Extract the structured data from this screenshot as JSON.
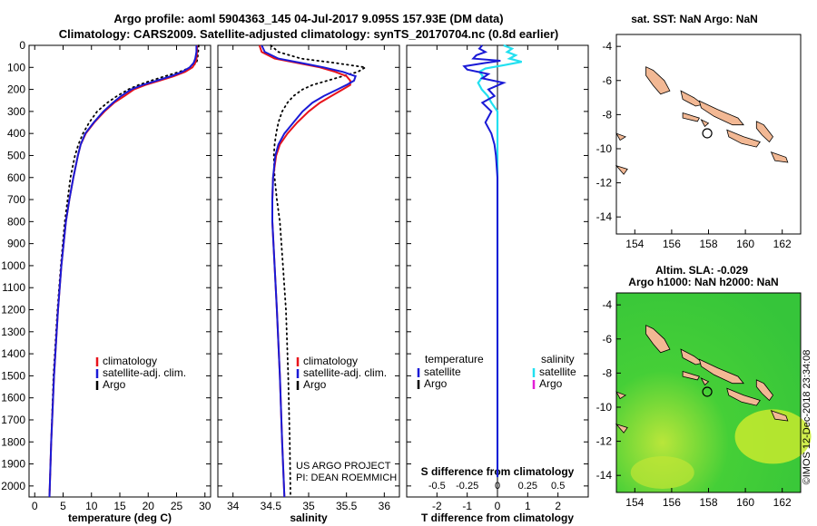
{
  "title": {
    "line1": "Argo profile: aoml 5904363_145 04-Jul-2017 9.095S 157.93E (DM data)",
    "line2": "Climatology: CARS2009. Satellite-adjusted climatology: synTS_20170704.nc (0.8d earlier)"
  },
  "depth_ticks": [
    0,
    100,
    200,
    300,
    400,
    500,
    600,
    700,
    800,
    900,
    1000,
    1100,
    1200,
    1300,
    1400,
    1500,
    1600,
    1700,
    1800,
    1900,
    2000
  ],
  "colors": {
    "clim": "#e8131b",
    "sat": "#1a1ad6",
    "argo": "#000000",
    "sat_s": "#22e0f0",
    "argo_s": "#e21fd6",
    "land": "#f2b894",
    "sea_green": "#3bcf3b"
  },
  "chart_data": [
    {
      "type": "line",
      "name": "temperature",
      "xlabel": "temperature (deg C)",
      "ylabel": "depth",
      "xlim": [
        -1,
        31
      ],
      "ylim": [
        2050,
        0
      ],
      "xticks": [
        0,
        5,
        10,
        15,
        20,
        25,
        30
      ],
      "legend": [
        "climatology",
        "satellite-adj. clim.",
        "Argo"
      ],
      "series": [
        {
          "name": "climatology",
          "depth": [
            0,
            30,
            60,
            80,
            100,
            120,
            140,
            160,
            180,
            200,
            230,
            260,
            300,
            350,
            400,
            450,
            500,
            600,
            700,
            800,
            1000,
            1200,
            1500,
            1800,
            2050
          ],
          "values": [
            28.6,
            28.6,
            28.5,
            28.3,
            27.8,
            26.5,
            24.5,
            22,
            19.5,
            17.5,
            15.8,
            14,
            12.3,
            10.5,
            9,
            8.1,
            7.6,
            6.8,
            6.1,
            5.5,
            4.7,
            4.1,
            3.4,
            2.9,
            2.6
          ]
        },
        {
          "name": "satellite-adj. clim.",
          "depth": [
            0,
            30,
            60,
            80,
            100,
            120,
            140,
            160,
            180,
            200,
            230,
            260,
            300,
            350,
            400,
            450,
            500,
            600,
            700,
            800,
            1000,
            1200,
            1500,
            1800,
            2050
          ],
          "values": [
            28.5,
            28.5,
            28.3,
            28,
            27.3,
            26,
            24,
            21.5,
            19,
            17,
            15.2,
            13.8,
            12.1,
            10.4,
            8.9,
            8.1,
            7.6,
            6.8,
            6.1,
            5.5,
            4.7,
            4.1,
            3.4,
            2.9,
            2.6
          ]
        },
        {
          "name": "Argo",
          "depth": [
            0,
            30,
            60,
            80,
            100,
            120,
            140,
            160,
            180,
            200,
            230,
            260,
            300,
            350,
            400,
            450,
            500,
            600,
            700,
            800,
            1000,
            1200,
            1500,
            1800,
            2050
          ],
          "values": [
            28.9,
            28.8,
            28.7,
            28.5,
            27.5,
            25.5,
            23,
            20.5,
            18.3,
            16.5,
            14.5,
            12.8,
            11,
            9.6,
            8.5,
            7.7,
            7.1,
            6.3,
            5.8,
            5.3,
            4.6,
            4,
            3.3,
            2.9,
            2.6
          ]
        }
      ]
    },
    {
      "type": "line",
      "name": "salinity",
      "xlabel": "salinity",
      "ylabel": "depth",
      "xlim": [
        33.8,
        36.2
      ],
      "ylim": [
        2050,
        0
      ],
      "xticks": [
        34,
        34.5,
        35,
        35.5,
        36
      ],
      "xticklabels": [
        "34",
        "34.5",
        "35",
        "35.5",
        "36"
      ],
      "legend": [
        "climatology",
        "satellite-adj. clim.",
        "Argo"
      ],
      "annotation": [
        "US ARGO PROJECT",
        "PI: DEAN ROEMMICH"
      ],
      "series": [
        {
          "name": "climatology",
          "depth": [
            0,
            30,
            60,
            80,
            100,
            120,
            140,
            160,
            180,
            200,
            230,
            260,
            300,
            350,
            400,
            450,
            500,
            600,
            700,
            800,
            1000,
            1200,
            1500,
            1800,
            2050
          ],
          "values": [
            34.35,
            34.38,
            34.55,
            34.85,
            35.15,
            35.35,
            35.5,
            35.55,
            35.55,
            35.45,
            35.3,
            35.15,
            35.0,
            34.85,
            34.72,
            34.62,
            34.57,
            34.53,
            34.52,
            34.52,
            34.55,
            34.58,
            34.62,
            34.65,
            34.68
          ]
        },
        {
          "name": "satellite-adj. clim.",
          "depth": [
            0,
            30,
            60,
            80,
            100,
            120,
            140,
            160,
            180,
            200,
            230,
            260,
            300,
            350,
            400,
            450,
            500,
            600,
            700,
            800,
            1000,
            1200,
            1500,
            1800,
            2050
          ],
          "values": [
            34.38,
            34.42,
            34.6,
            34.9,
            35.2,
            35.45,
            35.62,
            35.6,
            35.5,
            35.38,
            35.2,
            35.05,
            34.92,
            34.8,
            34.68,
            34.6,
            34.56,
            34.53,
            34.52,
            34.52,
            34.55,
            34.58,
            34.62,
            34.65,
            34.68
          ]
        },
        {
          "name": "Argo",
          "depth": [
            0,
            30,
            60,
            80,
            100,
            120,
            140,
            160,
            180,
            200,
            230,
            260,
            300,
            350,
            400,
            450,
            500,
            600,
            700,
            800,
            1000,
            1200,
            1500,
            1800,
            2050
          ],
          "values": [
            34.5,
            34.6,
            34.9,
            35.35,
            35.75,
            35.65,
            35.45,
            35.25,
            35.05,
            34.92,
            34.8,
            34.72,
            34.65,
            34.6,
            34.57,
            34.55,
            34.54,
            34.55,
            34.58,
            34.62,
            34.66,
            34.7,
            34.73,
            34.75,
            34.76
          ]
        }
      ]
    },
    {
      "type": "line",
      "name": "difference",
      "xlabel": "T difference from climatology",
      "ylabel": "depth",
      "xlim": [
        -3,
        3
      ],
      "ylim": [
        2050,
        0
      ],
      "xticks": [
        -2,
        -1,
        0,
        1,
        2
      ],
      "xticklabels": [
        "-2",
        "-1",
        "0",
        "1",
        "2"
      ],
      "s_axis_ticks": [
        -0.5,
        -0.25,
        0,
        0.25,
        0.5
      ],
      "s_axis_ticklabels": [
        "-0.5",
        "-0.25",
        "0",
        "0.25",
        "0.5"
      ],
      "s_axis_label": "S difference from climatology",
      "legend_left": {
        "title": "temperature",
        "items": [
          "satellite",
          "Argo"
        ]
      },
      "legend_right": {
        "title": "salinity",
        "items": [
          "satellite",
          "Argo"
        ]
      },
      "series": [
        {
          "name": "temperature satellite",
          "depth": [
            0,
            15,
            30,
            45,
            60,
            70,
            80,
            95,
            110,
            130,
            150,
            170,
            200,
            230,
            260,
            300,
            350,
            400,
            450,
            500,
            600,
            800,
            1000,
            1200,
            1500,
            1800,
            1960
          ],
          "values": [
            -0.5,
            -0.6,
            -0.4,
            -0.7,
            -0.8,
            0.1,
            -0.4,
            -1.1,
            -1.0,
            -0.3,
            -0.5,
            0.2,
            -0.3,
            -0.1,
            -0.5,
            -0.2,
            -0.4,
            -0.2,
            -0.1,
            -0.05,
            0.0,
            0.0,
            0.0,
            0.0,
            0.0,
            0.0,
            0.0
          ]
        },
        {
          "name": "salinity satellite",
          "depth": [
            0,
            15,
            30,
            45,
            60,
            75,
            90,
            105,
            120,
            140,
            170,
            200,
            230,
            260,
            300,
            350,
            400,
            500,
            600,
            800,
            1000,
            1200,
            1500,
            1800,
            1960
          ],
          "values": [
            0.05,
            0.12,
            0.08,
            0.15,
            0.1,
            0.2,
            0.05,
            -0.1,
            -0.15,
            -0.12,
            -0.16,
            -0.13,
            -0.08,
            -0.05,
            0.0,
            0.0,
            0.0,
            0.0,
            0.0,
            0.0,
            0.0,
            0.0,
            0.0,
            0.0,
            0.0
          ]
        }
      ]
    },
    {
      "type": "map",
      "name": "sst-map",
      "title": "sat. SST: NaN Argo: NaN",
      "xticks": [
        154,
        156,
        158,
        160,
        162
      ],
      "yticks": [
        -4,
        -6,
        -8,
        -10,
        -12,
        -14
      ],
      "xlim": [
        153,
        163
      ],
      "ylim": [
        -15,
        -3.3
      ],
      "marker": {
        "lon": 157.93,
        "lat": -9.095
      }
    },
    {
      "type": "map",
      "name": "sla-map",
      "title1": "Altim. SLA: -0.029",
      "title2": "Argo h1000: NaN h2000: NaN",
      "xticks": [
        154,
        156,
        158,
        160,
        162
      ],
      "yticks": [
        -4,
        -6,
        -8,
        -10,
        -12,
        -14
      ],
      "xlim": [
        153,
        163
      ],
      "ylim": [
        -15,
        -3.3
      ],
      "marker": {
        "lon": 157.93,
        "lat": -9.095
      }
    }
  ],
  "credit": "©IMOS 12-Dec-2018 23:34:08"
}
